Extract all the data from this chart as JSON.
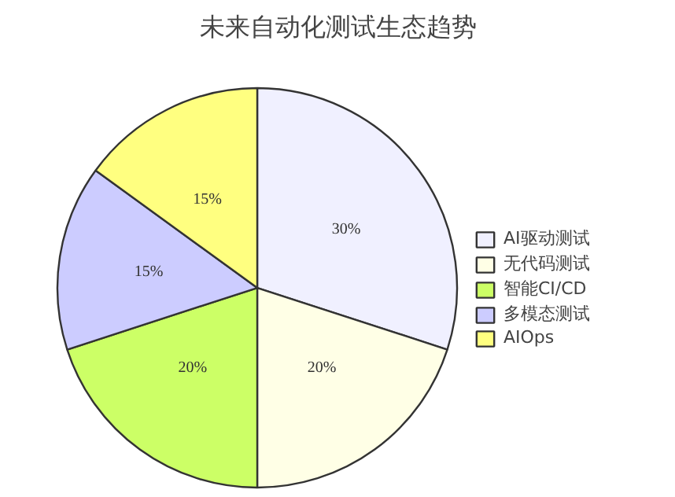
{
  "chart_data": {
    "type": "pie",
    "title": "未来自动化测试生态趋势",
    "categories": [
      "AI驱动测试",
      "无代码测试",
      "智能CI/CD",
      "多模态测试",
      "AIOps"
    ],
    "values": [
      30,
      20,
      20,
      15,
      15
    ],
    "colors": [
      "#f0f0ff",
      "#ffffe6",
      "#ccff66",
      "#ccccff",
      "#ffff80"
    ],
    "value_labels": [
      "30%",
      "20%",
      "20%",
      "15%",
      "15%"
    ],
    "legend": "right"
  }
}
